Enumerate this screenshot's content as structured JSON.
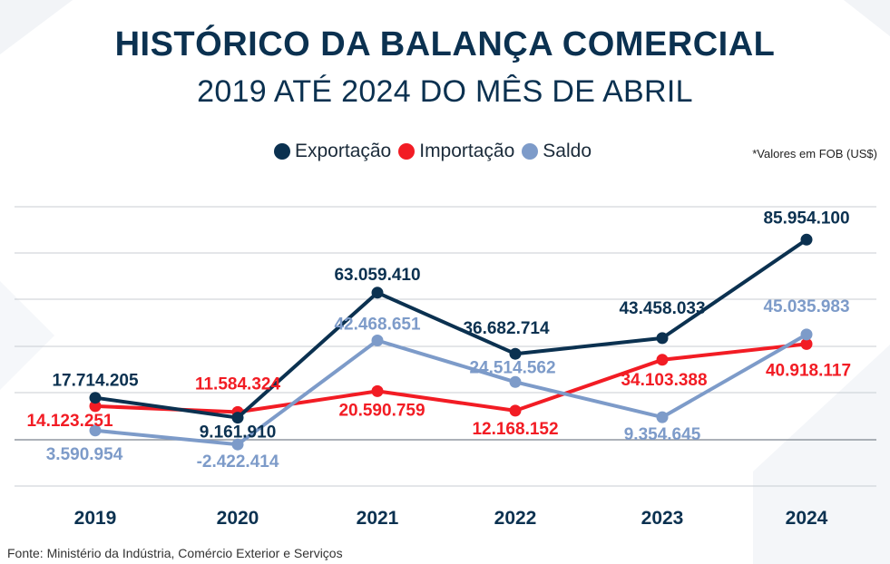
{
  "header": {
    "title": "HISTÓRICO DA BALANÇA COMERCIAL",
    "subtitle": "2019 ATÉ 2024 DO MÊS DE ABRIL"
  },
  "legend": [
    {
      "label": "Exportação",
      "color": "#0b3150"
    },
    {
      "label": "Importação",
      "color": "#f21c24"
    },
    {
      "label": "Saldo",
      "color": "#7d9bc9"
    }
  ],
  "note": "*Valores em FOB (US$)",
  "source": "Fonte: Ministério da Indústria, Comércio Exterior e Serviços",
  "chart_data": {
    "type": "line",
    "categories": [
      "2019",
      "2020",
      "2021",
      "2022",
      "2023",
      "2024"
    ],
    "series": [
      {
        "name": "Exportação",
        "color": "#0b3150",
        "values": [
          17714205,
          9161910,
          63059410,
          36682714,
          43458033,
          85954100
        ],
        "labels": [
          "17.714.205",
          "9.161.910",
          "63.059.410",
          "36.682.714",
          "43.458.033",
          "85.954.100"
        ]
      },
      {
        "name": "Importação",
        "color": "#f21c24",
        "values": [
          14123251,
          11584324,
          20590759,
          12168152,
          34103388,
          40918117
        ],
        "labels": [
          "14.123.251",
          "11.584.324",
          "20.590.759",
          "12.168.152",
          "34.103.388",
          "40.918.117"
        ]
      },
      {
        "name": "Saldo",
        "color": "#7d9bc9",
        "values": [
          3590954,
          -2422414,
          42468651,
          24514562,
          9354645,
          45035983
        ],
        "labels": [
          "3.590.954",
          "-2.422.414",
          "42.468.651",
          "24.514.562",
          "9.354.645",
          "45.035.983"
        ]
      }
    ],
    "grid": true,
    "legend_position": "top"
  }
}
